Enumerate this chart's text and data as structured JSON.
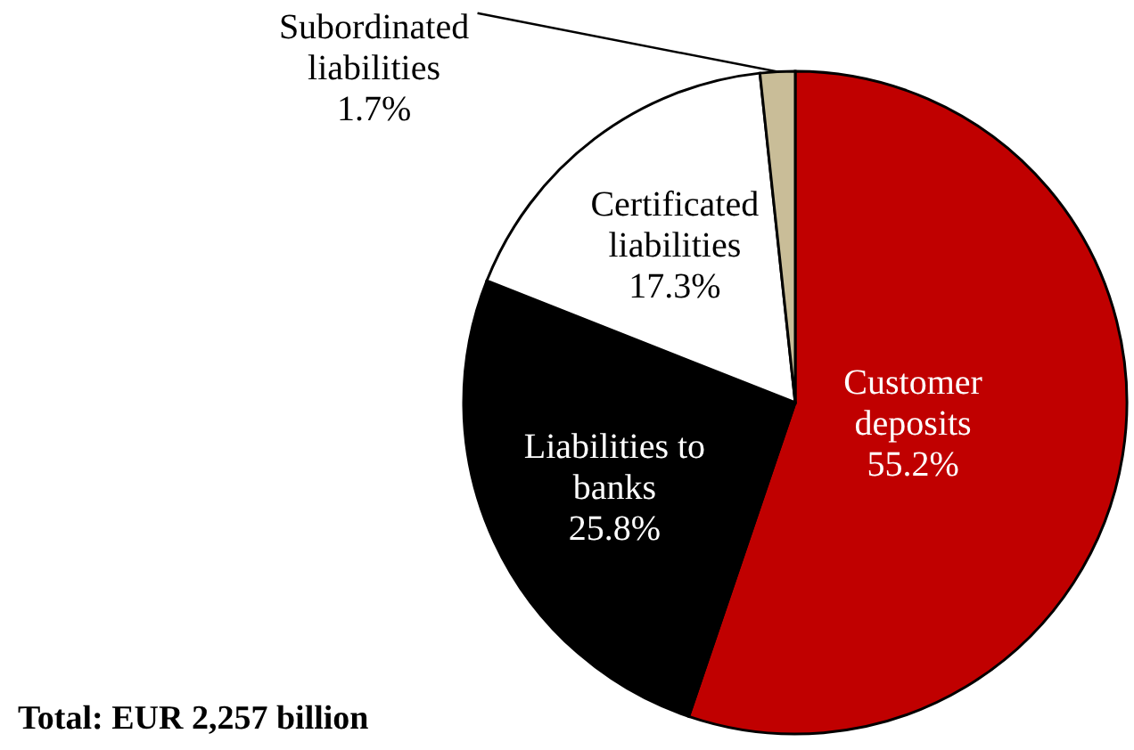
{
  "chart_data": {
    "type": "pie",
    "categories": [
      "Customer deposits",
      "Liabilities to banks",
      "Certificated liabilities",
      "Subordinated liabilities"
    ],
    "values": [
      55.2,
      25.8,
      17.3,
      1.7
    ],
    "colors": [
      "#c00000",
      "#000000",
      "#ffffff",
      "#c9bd98"
    ],
    "value_labels": [
      "55.2%",
      "25.8%",
      "17.3%",
      "1.7%"
    ],
    "annotations": [
      "Total: EUR 2,257 billion"
    ],
    "legend": false
  }
}
